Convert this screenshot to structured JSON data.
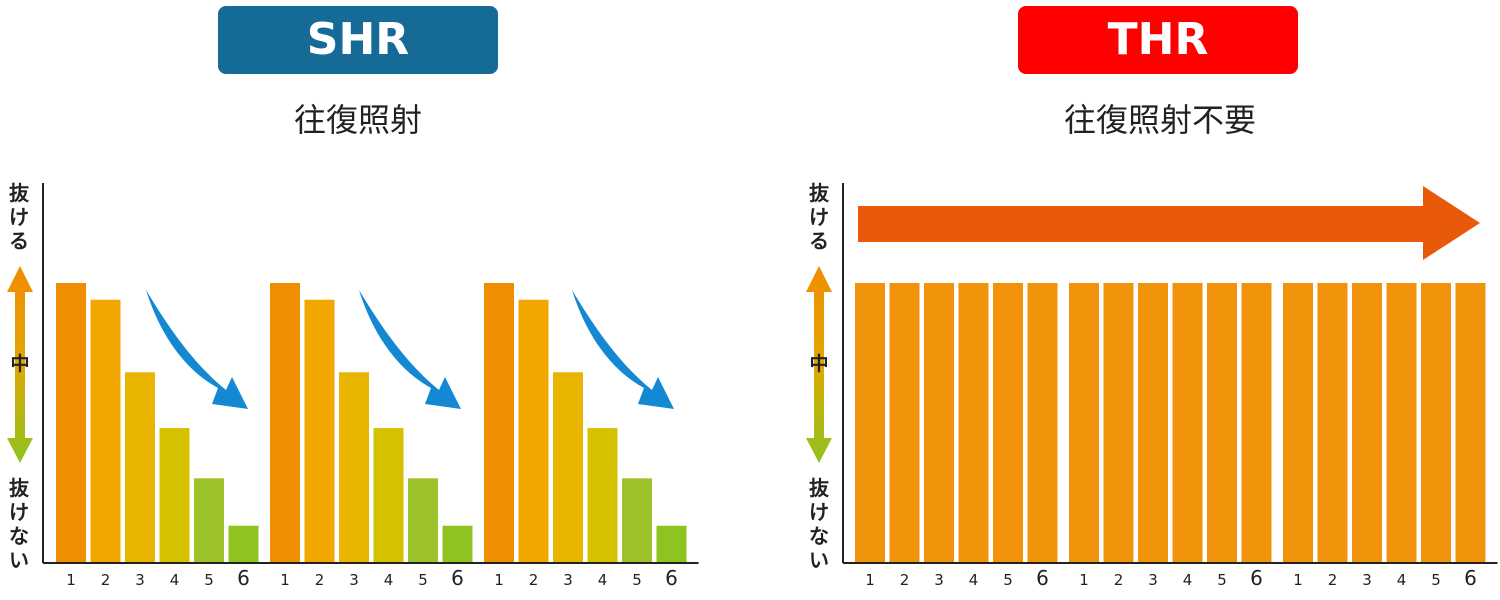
{
  "panels": [
    {
      "badge": "SHR",
      "badge_color": "#156A96",
      "subtitle": "往復照射"
    },
    {
      "badge": "THR",
      "badge_color": "#FF0000",
      "subtitle": "往復照射不要"
    }
  ],
  "axis": {
    "top": "抜ける",
    "middle": "中",
    "bottom": "抜けない"
  },
  "colors": {
    "level_1": "#EF8E00",
    "level_2": "#F2A600",
    "level_3": "#E8B400",
    "level_4": "#D6C100",
    "level_5": "#9CC42A",
    "level_6": "#8EC320",
    "thr_bar": "#F0920A",
    "direction_arrow": "#1588D4",
    "flow_arrow": "#E85A0A"
  },
  "chart_data": [
    {
      "type": "bar",
      "title": "SHR",
      "subtitle": "往復照射",
      "categories": [
        "1",
        "2",
        "3",
        "4",
        "5",
        "6",
        "1",
        "2",
        "3",
        "4",
        "5",
        "6",
        "1",
        "2",
        "3",
        "4",
        "5",
        "6"
      ],
      "values": [
        100,
        94,
        68,
        48,
        30,
        13,
        100,
        94,
        68,
        48,
        30,
        13,
        100,
        94,
        68,
        48,
        30,
        13
      ],
      "ylim": [
        0,
        100
      ],
      "y_scale_labels": [
        "抜けない",
        "中",
        "抜ける"
      ],
      "grid": false
    },
    {
      "type": "bar",
      "title": "THR",
      "subtitle": "往復照射不要",
      "categories": [
        "1",
        "2",
        "3",
        "4",
        "5",
        "6",
        "1",
        "2",
        "3",
        "4",
        "5",
        "6",
        "1",
        "2",
        "3",
        "4",
        "5",
        "6"
      ],
      "values": [
        100,
        100,
        100,
        100,
        100,
        100,
        100,
        100,
        100,
        100,
        100,
        100,
        100,
        100,
        100,
        100,
        100,
        100
      ],
      "ylim": [
        0,
        100
      ],
      "y_scale_labels": [
        "抜けない",
        "中",
        "抜ける"
      ],
      "grid": false
    }
  ]
}
